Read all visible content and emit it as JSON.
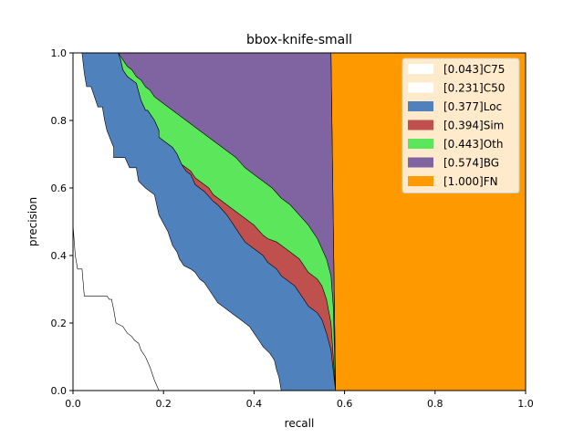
{
  "chart_data": {
    "type": "area",
    "title": "bbox-knife-small",
    "xlabel": "recall",
    "ylabel": "precision",
    "xlim": [
      0,
      1
    ],
    "ylim": [
      0,
      1
    ],
    "xticks": [
      "0.0",
      "0.2",
      "0.4",
      "0.6",
      "0.8",
      "1.0"
    ],
    "yticks": [
      "0.0",
      "0.2",
      "0.4",
      "0.6",
      "0.8",
      "1.0"
    ],
    "grid": false,
    "legend_position": "top-right",
    "legend": [
      {
        "label": "[0.043]C75",
        "color": "#ffffff"
      },
      {
        "label": "[0.231]C50",
        "color": "#ffffff"
      },
      {
        "label": "[0.377]Loc",
        "color": "#4f81bd"
      },
      {
        "label": "[0.394]Sim",
        "color": "#c0504d"
      },
      {
        "label": "[0.443]Oth",
        "color": "#5ce65c"
      },
      {
        "label": "[0.574]BG",
        "color": "#8064a2"
      },
      {
        "label": "[1.000]FN",
        "color": "#ff9900"
      }
    ],
    "series": [
      {
        "name": "[0.043]C75",
        "color": "#ffffff",
        "points": [
          [
            0,
            0.49
          ],
          [
            0.005,
            0.4
          ],
          [
            0.01,
            0.36
          ],
          [
            0.02,
            0.36
          ],
          [
            0.025,
            0.28
          ],
          [
            0.045,
            0.28
          ],
          [
            0.075,
            0.28
          ],
          [
            0.08,
            0.27
          ],
          [
            0.085,
            0.27
          ],
          [
            0.09,
            0.24
          ],
          [
            0.095,
            0.2
          ],
          [
            0.11,
            0.19
          ],
          [
            0.12,
            0.17
          ],
          [
            0.13,
            0.16
          ],
          [
            0.135,
            0.15
          ],
          [
            0.145,
            0.14
          ],
          [
            0.15,
            0.12
          ],
          [
            0.16,
            0.1
          ],
          [
            0.17,
            0.07
          ],
          [
            0.18,
            0.03
          ],
          [
            0.19,
            0.0
          ]
        ]
      },
      {
        "name": "[0.231]C50",
        "color": "#ffffff",
        "points": [
          [
            0.02,
            1.0
          ],
          [
            0.025,
            0.94
          ],
          [
            0.03,
            0.9
          ],
          [
            0.04,
            0.9
          ],
          [
            0.045,
            0.88
          ],
          [
            0.055,
            0.84
          ],
          [
            0.065,
            0.84
          ],
          [
            0.07,
            0.8
          ],
          [
            0.075,
            0.77
          ],
          [
            0.09,
            0.72
          ],
          [
            0.09,
            0.69
          ],
          [
            0.115,
            0.69
          ],
          [
            0.125,
            0.66
          ],
          [
            0.14,
            0.66
          ],
          [
            0.145,
            0.62
          ],
          [
            0.16,
            0.6
          ],
          [
            0.18,
            0.58
          ],
          [
            0.185,
            0.55
          ],
          [
            0.19,
            0.52
          ],
          [
            0.21,
            0.47
          ],
          [
            0.215,
            0.45
          ],
          [
            0.22,
            0.43
          ],
          [
            0.225,
            0.42
          ],
          [
            0.23,
            0.41
          ],
          [
            0.235,
            0.39
          ],
          [
            0.245,
            0.37
          ],
          [
            0.26,
            0.36
          ],
          [
            0.27,
            0.35
          ],
          [
            0.28,
            0.33
          ],
          [
            0.29,
            0.32
          ],
          [
            0.3,
            0.3
          ],
          [
            0.31,
            0.28
          ],
          [
            0.32,
            0.26
          ],
          [
            0.33,
            0.25
          ],
          [
            0.35,
            0.23
          ],
          [
            0.37,
            0.21
          ],
          [
            0.38,
            0.2
          ],
          [
            0.39,
            0.19
          ],
          [
            0.4,
            0.17
          ],
          [
            0.41,
            0.15
          ],
          [
            0.42,
            0.13
          ],
          [
            0.435,
            0.11
          ],
          [
            0.445,
            0.09
          ],
          [
            0.45,
            0.06
          ],
          [
            0.455,
            0.04
          ],
          [
            0.46,
            0.0
          ]
        ]
      },
      {
        "name": "[0.377]Loc",
        "color": "#4f81bd",
        "points": [
          [
            0.1,
            1.0
          ],
          [
            0.105,
            0.98
          ],
          [
            0.11,
            0.95
          ],
          [
            0.12,
            0.93
          ],
          [
            0.13,
            0.92
          ],
          [
            0.14,
            0.91
          ],
          [
            0.15,
            0.86
          ],
          [
            0.16,
            0.83
          ],
          [
            0.165,
            0.83
          ],
          [
            0.18,
            0.8
          ],
          [
            0.19,
            0.77
          ],
          [
            0.19,
            0.75
          ],
          [
            0.2,
            0.74
          ],
          [
            0.22,
            0.72
          ],
          [
            0.23,
            0.7
          ],
          [
            0.24,
            0.67
          ],
          [
            0.25,
            0.65
          ],
          [
            0.26,
            0.64
          ],
          [
            0.27,
            0.61
          ],
          [
            0.29,
            0.59
          ],
          [
            0.31,
            0.56
          ],
          [
            0.32,
            0.55
          ],
          [
            0.34,
            0.52
          ],
          [
            0.35,
            0.5
          ],
          [
            0.36,
            0.48
          ],
          [
            0.37,
            0.46
          ],
          [
            0.38,
            0.44
          ],
          [
            0.39,
            0.43
          ],
          [
            0.4,
            0.42
          ],
          [
            0.42,
            0.4
          ],
          [
            0.43,
            0.38
          ],
          [
            0.45,
            0.36
          ],
          [
            0.46,
            0.34
          ],
          [
            0.48,
            0.32
          ],
          [
            0.49,
            0.31
          ],
          [
            0.5,
            0.29
          ],
          [
            0.51,
            0.27
          ],
          [
            0.52,
            0.25
          ],
          [
            0.53,
            0.24
          ],
          [
            0.54,
            0.23
          ],
          [
            0.55,
            0.21
          ],
          [
            0.56,
            0.17
          ],
          [
            0.57,
            0.12
          ],
          [
            0.58,
            0.0
          ]
        ]
      },
      {
        "name": "[0.394]Sim",
        "color": "#c0504d",
        "points": [
          [
            0.1,
            1.0
          ],
          [
            0.105,
            0.98
          ],
          [
            0.11,
            0.95
          ],
          [
            0.12,
            0.93
          ],
          [
            0.13,
            0.92
          ],
          [
            0.14,
            0.91
          ],
          [
            0.15,
            0.86
          ],
          [
            0.16,
            0.83
          ],
          [
            0.165,
            0.83
          ],
          [
            0.18,
            0.8
          ],
          [
            0.19,
            0.77
          ],
          [
            0.19,
            0.75
          ],
          [
            0.2,
            0.74
          ],
          [
            0.22,
            0.72
          ],
          [
            0.23,
            0.7
          ],
          [
            0.24,
            0.67
          ],
          [
            0.25,
            0.66
          ],
          [
            0.26,
            0.65
          ],
          [
            0.27,
            0.63
          ],
          [
            0.29,
            0.61
          ],
          [
            0.3,
            0.6
          ],
          [
            0.31,
            0.58
          ],
          [
            0.33,
            0.56
          ],
          [
            0.35,
            0.54
          ],
          [
            0.37,
            0.52
          ],
          [
            0.38,
            0.51
          ],
          [
            0.39,
            0.5
          ],
          [
            0.4,
            0.49
          ],
          [
            0.42,
            0.46
          ],
          [
            0.43,
            0.45
          ],
          [
            0.45,
            0.44
          ],
          [
            0.46,
            0.43
          ],
          [
            0.48,
            0.41
          ],
          [
            0.5,
            0.39
          ],
          [
            0.51,
            0.37
          ],
          [
            0.52,
            0.35
          ],
          [
            0.54,
            0.33
          ],
          [
            0.55,
            0.31
          ],
          [
            0.56,
            0.27
          ],
          [
            0.57,
            0.2
          ],
          [
            0.58,
            0.0
          ]
        ]
      },
      {
        "name": "[0.443]Oth",
        "color": "#5ce65c",
        "points": [
          [
            0.1,
            1.0
          ],
          [
            0.11,
            0.98
          ],
          [
            0.12,
            0.96
          ],
          [
            0.13,
            0.95
          ],
          [
            0.14,
            0.93
          ],
          [
            0.15,
            0.92
          ],
          [
            0.16,
            0.9
          ],
          [
            0.17,
            0.89
          ],
          [
            0.18,
            0.87
          ],
          [
            0.19,
            0.86
          ],
          [
            0.2,
            0.85
          ],
          [
            0.22,
            0.83
          ],
          [
            0.24,
            0.81
          ],
          [
            0.26,
            0.79
          ],
          [
            0.28,
            0.77
          ],
          [
            0.3,
            0.75
          ],
          [
            0.32,
            0.73
          ],
          [
            0.34,
            0.71
          ],
          [
            0.36,
            0.69
          ],
          [
            0.38,
            0.66
          ],
          [
            0.4,
            0.64
          ],
          [
            0.42,
            0.62
          ],
          [
            0.44,
            0.6
          ],
          [
            0.46,
            0.57
          ],
          [
            0.48,
            0.55
          ],
          [
            0.5,
            0.52
          ],
          [
            0.52,
            0.49
          ],
          [
            0.54,
            0.45
          ],
          [
            0.56,
            0.39
          ],
          [
            0.57,
            0.34
          ],
          [
            0.575,
            0.25
          ],
          [
            0.58,
            0.0
          ]
        ]
      },
      {
        "name": "[0.574]BG",
        "color": "#8064a2",
        "points": [
          [
            0.1,
            1.0
          ],
          [
            0.57,
            1.0
          ],
          [
            0.575,
            0.5
          ],
          [
            0.58,
            0.0
          ]
        ]
      },
      {
        "name": "[1.000]FN",
        "color": "#ff9900",
        "points": [
          [
            0.57,
            1.0
          ],
          [
            1.0,
            1.0
          ],
          [
            1.0,
            0.0
          ],
          [
            0.58,
            0.0
          ]
        ]
      }
    ]
  }
}
